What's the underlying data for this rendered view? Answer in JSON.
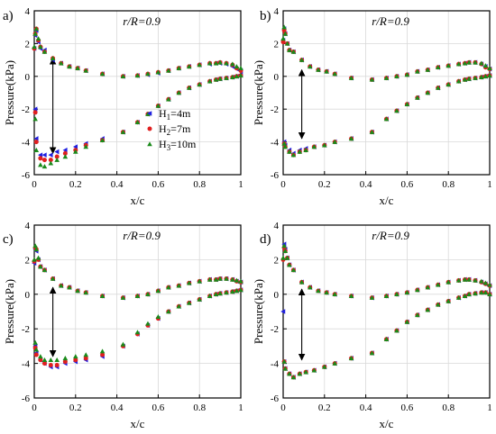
{
  "chart_data": {
    "type": "scatter",
    "xlabel": "x/c",
    "ylabel": "Pressure(kPa)",
    "xlim": [
      0,
      1
    ],
    "ylim": [
      -6,
      4
    ],
    "xticks": [
      "0",
      "0.2",
      "0.4",
      "0.6",
      "0.8",
      "1"
    ],
    "yticks": [
      "-6",
      "-4",
      "-2",
      "0",
      "2",
      "4"
    ],
    "grid": true,
    "annotation": "r/R=0.9",
    "legend": {
      "placement": "lower-right",
      "entries": [
        {
          "name": "H₁=4m",
          "base": "H",
          "sub": "1",
          "tail": "=4m",
          "color": "#1f1fe0",
          "marker": "triangle-left"
        },
        {
          "name": "H₂=7m",
          "base": "H",
          "sub": "2",
          "tail": "=7m",
          "color": "#e01f1f",
          "marker": "circle"
        },
        {
          "name": "H₃=10m",
          "base": "H",
          "sub": "3",
          "tail": "=10m",
          "color": "#1a8a1a",
          "marker": "triangle-up"
        }
      ]
    },
    "panels": [
      {
        "letter": "a)",
        "x_upper": [
          0.0,
          0.005,
          0.01,
          0.02,
          0.03,
          0.05,
          0.09,
          0.13,
          0.17,
          0.21,
          0.25,
          0.33,
          0.43,
          0.5,
          0.55,
          0.6,
          0.65,
          0.7,
          0.75,
          0.8,
          0.85,
          0.88,
          0.9,
          0.93,
          0.96,
          0.98,
          1.0
        ],
        "x_lower": [
          0.005,
          0.01,
          0.03,
          0.05,
          0.08,
          0.11,
          0.15,
          0.2,
          0.25,
          0.33,
          0.43,
          0.5,
          0.55,
          0.6,
          0.65,
          0.7,
          0.75,
          0.8,
          0.85,
          0.88,
          0.9,
          0.93,
          0.96,
          0.98,
          1.0
        ],
        "series": [
          {
            "name": "H₁=4m",
            "upper": [
              1.7,
              2.5,
              2.8,
              2.1,
              1.7,
              1.6,
              1.0,
              0.8,
              0.6,
              0.5,
              0.35,
              0.15,
              0.0,
              0.05,
              0.1,
              0.2,
              0.35,
              0.5,
              0.6,
              0.7,
              0.75,
              0.8,
              0.8,
              0.75,
              0.6,
              0.45,
              0.35
            ],
            "lower": [
              -2.0,
              -3.8,
              -4.8,
              -4.8,
              -4.8,
              -4.6,
              -4.5,
              -4.3,
              -4.1,
              -3.8,
              -3.4,
              -2.8,
              -2.3,
              -1.8,
              -1.4,
              -1.0,
              -0.7,
              -0.5,
              -0.3,
              -0.2,
              -0.15,
              -0.1,
              -0.05,
              0.0,
              0.1
            ]
          },
          {
            "name": "H₂=7m",
            "upper": [
              1.7,
              2.6,
              2.9,
              2.2,
              1.8,
              1.5,
              1.1,
              0.8,
              0.6,
              0.5,
              0.35,
              0.15,
              0.0,
              0.05,
              0.15,
              0.25,
              0.35,
              0.5,
              0.6,
              0.7,
              0.8,
              0.8,
              0.85,
              0.8,
              0.7,
              0.5,
              0.35
            ],
            "lower": [
              -2.2,
              -4.0,
              -5.0,
              -5.1,
              -5.1,
              -4.9,
              -4.7,
              -4.5,
              -4.2,
              -3.9,
              -3.4,
              -2.8,
              -2.3,
              -1.8,
              -1.4,
              -1.0,
              -0.7,
              -0.5,
              -0.3,
              -0.2,
              -0.15,
              -0.1,
              -0.05,
              0.0,
              0.05
            ]
          },
          {
            "name": "H₃=10m",
            "upper": [
              1.8,
              2.6,
              2.9,
              2.3,
              1.8,
              1.5,
              1.1,
              0.8,
              0.6,
              0.5,
              0.35,
              0.15,
              0.0,
              0.05,
              0.15,
              0.25,
              0.35,
              0.5,
              0.6,
              0.7,
              0.8,
              0.8,
              0.85,
              0.8,
              0.75,
              0.6,
              0.5
            ],
            "lower": [
              -2.6,
              -4.5,
              -5.4,
              -5.5,
              -5.3,
              -5.1,
              -4.9,
              -4.6,
              -4.3,
              -3.9,
              -3.4,
              -2.8,
              -2.3,
              -1.8,
              -1.4,
              -1.0,
              -0.7,
              -0.5,
              -0.3,
              -0.2,
              -0.15,
              -0.1,
              -0.05,
              0.0,
              0.05
            ]
          }
        ],
        "arrow": {
          "x": 0.09,
          "y_from": 1.1,
          "y_to": -4.7
        }
      },
      {
        "letter": "b)",
        "x_upper": [
          0.0,
          0.005,
          0.01,
          0.02,
          0.03,
          0.05,
          0.09,
          0.13,
          0.17,
          0.21,
          0.25,
          0.33,
          0.43,
          0.5,
          0.55,
          0.6,
          0.65,
          0.7,
          0.75,
          0.8,
          0.85,
          0.88,
          0.9,
          0.93,
          0.96,
          0.98,
          1.0
        ],
        "x_lower": [
          0.005,
          0.01,
          0.03,
          0.05,
          0.08,
          0.11,
          0.15,
          0.2,
          0.25,
          0.33,
          0.43,
          0.5,
          0.55,
          0.6,
          0.65,
          0.7,
          0.75,
          0.8,
          0.85,
          0.88,
          0.9,
          0.93,
          0.96,
          0.98,
          1.0
        ],
        "series": [
          {
            "name": "H₁=4m",
            "upper": [
              2.2,
              2.9,
              2.6,
              2.0,
              1.6,
              1.5,
              1.0,
              0.6,
              0.4,
              0.3,
              0.15,
              -0.1,
              -0.2,
              -0.1,
              0.0,
              0.1,
              0.3,
              0.4,
              0.55,
              0.65,
              0.75,
              0.8,
              0.85,
              0.85,
              0.75,
              0.6,
              0.45
            ],
            "lower": [
              -4.0,
              -4.2,
              -4.5,
              -4.7,
              -4.5,
              -4.4,
              -4.3,
              -4.2,
              -4.0,
              -3.8,
              -3.4,
              -2.6,
              -2.1,
              -1.7,
              -1.3,
              -1.0,
              -0.7,
              -0.5,
              -0.3,
              -0.2,
              -0.15,
              -0.1,
              -0.05,
              0.0,
              0.05
            ]
          },
          {
            "name": "H₂=7m",
            "upper": [
              2.1,
              2.8,
              2.6,
              2.0,
              1.6,
              1.5,
              1.0,
              0.6,
              0.4,
              0.3,
              0.15,
              -0.1,
              -0.2,
              -0.1,
              0.0,
              0.1,
              0.3,
              0.4,
              0.55,
              0.65,
              0.75,
              0.8,
              0.85,
              0.85,
              0.75,
              0.55,
              0.45
            ],
            "lower": [
              -4.1,
              -4.3,
              -4.6,
              -4.8,
              -4.6,
              -4.5,
              -4.3,
              -4.2,
              -4.0,
              -3.8,
              -3.4,
              -2.6,
              -2.1,
              -1.7,
              -1.3,
              -1.0,
              -0.7,
              -0.5,
              -0.3,
              -0.2,
              -0.15,
              -0.1,
              -0.05,
              0.0,
              0.05
            ]
          },
          {
            "name": "H₃=10m",
            "upper": [
              2.3,
              3.0,
              2.6,
              2.0,
              1.6,
              1.5,
              1.0,
              0.6,
              0.4,
              0.3,
              0.15,
              -0.1,
              -0.2,
              -0.1,
              0.0,
              0.1,
              0.3,
              0.4,
              0.55,
              0.65,
              0.75,
              0.8,
              0.85,
              0.85,
              0.8,
              0.65,
              0.5
            ],
            "lower": [
              -4.1,
              -4.3,
              -4.6,
              -4.8,
              -4.6,
              -4.5,
              -4.3,
              -4.2,
              -4.0,
              -3.8,
              -3.4,
              -2.6,
              -2.1,
              -1.7,
              -1.3,
              -1.0,
              -0.7,
              -0.5,
              -0.3,
              -0.2,
              -0.15,
              -0.1,
              -0.05,
              0.0,
              0.05
            ]
          }
        ],
        "arrow": {
          "x": 0.09,
          "y_from": 0.4,
          "y_to": -3.8
        }
      },
      {
        "letter": "c)",
        "x_upper": [
          0.0,
          0.005,
          0.01,
          0.02,
          0.03,
          0.05,
          0.09,
          0.13,
          0.17,
          0.21,
          0.25,
          0.33,
          0.43,
          0.5,
          0.55,
          0.6,
          0.65,
          0.7,
          0.75,
          0.8,
          0.85,
          0.88,
          0.9,
          0.93,
          0.96,
          0.98,
          1.0
        ],
        "x_lower": [
          0.005,
          0.01,
          0.03,
          0.05,
          0.08,
          0.11,
          0.15,
          0.2,
          0.25,
          0.33,
          0.43,
          0.5,
          0.55,
          0.6,
          0.65,
          0.7,
          0.75,
          0.8,
          0.85,
          0.88,
          0.9,
          0.93,
          0.96,
          0.98,
          1.0
        ],
        "series": [
          {
            "name": "H₁=4m",
            "upper": [
              1.8,
              2.6,
              2.5,
              2.0,
              1.6,
              1.4,
              0.9,
              0.5,
              0.4,
              0.2,
              0.1,
              -0.1,
              -0.2,
              -0.1,
              0.0,
              0.2,
              0.4,
              0.5,
              0.65,
              0.75,
              0.85,
              0.85,
              0.9,
              0.9,
              0.85,
              0.75,
              0.7
            ],
            "lower": [
              -3.0,
              -3.4,
              -3.8,
              -4.0,
              -4.2,
              -4.2,
              -4.0,
              -3.9,
              -3.8,
              -3.6,
              -3.0,
              -2.3,
              -1.8,
              -1.4,
              -1.0,
              -0.7,
              -0.5,
              -0.3,
              -0.1,
              0.0,
              0.05,
              0.1,
              0.15,
              0.2,
              0.25
            ]
          },
          {
            "name": "H₂=7m",
            "upper": [
              1.9,
              2.7,
              2.6,
              2.0,
              1.6,
              1.4,
              0.9,
              0.5,
              0.4,
              0.2,
              0.1,
              -0.1,
              -0.2,
              -0.1,
              0.0,
              0.2,
              0.4,
              0.5,
              0.65,
              0.75,
              0.85,
              0.85,
              0.9,
              0.9,
              0.85,
              0.75,
              0.7
            ],
            "lower": [
              -3.1,
              -3.5,
              -3.8,
              -4.0,
              -4.1,
              -4.1,
              -3.9,
              -3.8,
              -3.7,
              -3.5,
              -3.0,
              -2.3,
              -1.8,
              -1.4,
              -1.0,
              -0.7,
              -0.5,
              -0.3,
              -0.1,
              0.0,
              0.05,
              0.1,
              0.15,
              0.2,
              0.25
            ]
          },
          {
            "name": "H₃=10m",
            "upper": [
              2.0,
              2.8,
              2.6,
              2.1,
              1.6,
              1.4,
              0.9,
              0.5,
              0.4,
              0.2,
              0.1,
              -0.1,
              -0.2,
              -0.1,
              0.0,
              0.2,
              0.4,
              0.5,
              0.65,
              0.75,
              0.85,
              0.85,
              0.9,
              0.9,
              0.85,
              0.8,
              0.75
            ],
            "lower": [
              -2.8,
              -3.2,
              -3.6,
              -3.8,
              -3.8,
              -3.8,
              -3.7,
              -3.6,
              -3.5,
              -3.3,
              -2.9,
              -2.2,
              -1.7,
              -1.3,
              -1.0,
              -0.7,
              -0.5,
              -0.3,
              -0.1,
              0.0,
              0.05,
              0.1,
              0.15,
              0.2,
              0.25
            ]
          }
        ],
        "arrow": {
          "x": 0.09,
          "y_from": 0.4,
          "y_to": -3.6
        }
      },
      {
        "letter": "d)",
        "x_upper": [
          0.0,
          0.005,
          0.01,
          0.02,
          0.03,
          0.05,
          0.09,
          0.13,
          0.17,
          0.21,
          0.25,
          0.33,
          0.43,
          0.5,
          0.55,
          0.6,
          0.65,
          0.7,
          0.75,
          0.8,
          0.85,
          0.88,
          0.9,
          0.93,
          0.96,
          0.98,
          1.0
        ],
        "x_lower": [
          0.005,
          0.01,
          0.03,
          0.05,
          0.08,
          0.11,
          0.15,
          0.2,
          0.25,
          0.33,
          0.43,
          0.5,
          0.55,
          0.6,
          0.65,
          0.7,
          0.75,
          0.8,
          0.85,
          0.88,
          0.9,
          0.93,
          0.96,
          0.98,
          1.0
        ],
        "series": [
          {
            "name": "H₁=4m",
            "upper": [
              -1.0,
              2.9,
              2.6,
              2.1,
              1.7,
              1.4,
              0.7,
              0.4,
              0.2,
              0.1,
              0.0,
              -0.1,
              -0.2,
              -0.1,
              0.0,
              0.1,
              0.25,
              0.4,
              0.55,
              0.7,
              0.8,
              0.85,
              0.85,
              0.8,
              0.7,
              0.6,
              0.5
            ],
            "lower": [
              -3.9,
              -4.3,
              -4.6,
              -4.8,
              -4.6,
              -4.5,
              -4.4,
              -4.2,
              -4.0,
              -3.7,
              -3.4,
              -2.6,
              -2.1,
              -1.6,
              -1.2,
              -0.9,
              -0.6,
              -0.4,
              -0.2,
              -0.1,
              0.0,
              0.05,
              0.1,
              0.1,
              0.0
            ]
          },
          {
            "name": "H₂=7m",
            "upper": [
              2.0,
              2.7,
              2.5,
              2.1,
              1.7,
              1.4,
              0.7,
              0.4,
              0.2,
              0.1,
              0.0,
              -0.1,
              -0.2,
              -0.1,
              0.0,
              0.1,
              0.25,
              0.4,
              0.55,
              0.7,
              0.8,
              0.85,
              0.85,
              0.8,
              0.7,
              0.6,
              0.5
            ],
            "lower": [
              -3.9,
              -4.3,
              -4.6,
              -4.8,
              -4.6,
              -4.5,
              -4.4,
              -4.2,
              -4.0,
              -3.7,
              -3.4,
              -2.6,
              -2.1,
              -1.6,
              -1.2,
              -0.9,
              -0.6,
              -0.4,
              -0.2,
              -0.1,
              0.0,
              0.05,
              0.1,
              0.1,
              0.0
            ]
          },
          {
            "name": "H₃=10m",
            "upper": [
              2.1,
              2.8,
              2.5,
              2.1,
              1.7,
              1.4,
              0.7,
              0.4,
              0.2,
              0.1,
              0.0,
              -0.1,
              -0.2,
              -0.1,
              0.0,
              0.1,
              0.25,
              0.4,
              0.55,
              0.7,
              0.8,
              0.85,
              0.85,
              0.8,
              0.75,
              0.65,
              0.55
            ],
            "lower": [
              -3.9,
              -4.3,
              -4.6,
              -4.8,
              -4.6,
              -4.5,
              -4.4,
              -4.2,
              -4.0,
              -3.7,
              -3.4,
              -2.6,
              -2.1,
              -1.6,
              -1.2,
              -0.9,
              -0.6,
              -0.4,
              -0.2,
              -0.1,
              0.0,
              0.05,
              0.1,
              0.1,
              0.0
            ]
          }
        ],
        "arrow": {
          "x": 0.09,
          "y_from": 0.3,
          "y_to": -3.8
        }
      }
    ]
  }
}
